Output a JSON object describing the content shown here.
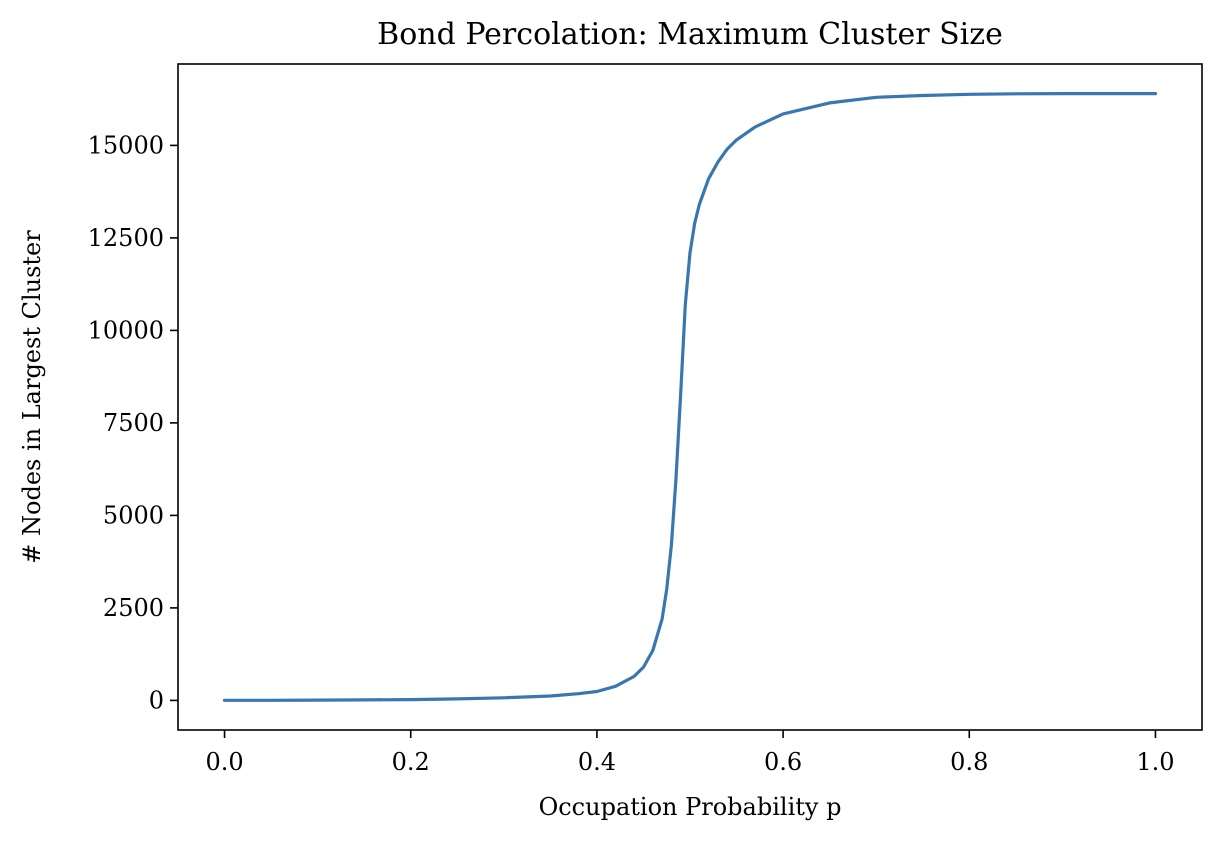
{
  "chart_data": {
    "type": "line",
    "title": "Bond Percolation: Maximum Cluster Size",
    "xlabel": "Occupation Probability p",
    "ylabel": "# Nodes in Largest Cluster",
    "xlim": [
      -0.05,
      1.05
    ],
    "ylim": [
      -800,
      17200
    ],
    "x_ticks": [
      0.0,
      0.2,
      0.4,
      0.6,
      0.8,
      1.0
    ],
    "x_tick_labels": [
      "0.0",
      "0.2",
      "0.4",
      "0.6",
      "0.8",
      "1.0"
    ],
    "y_ticks": [
      0,
      2500,
      5000,
      7500,
      10000,
      12500,
      15000
    ],
    "y_tick_labels": [
      "0",
      "2500",
      "5000",
      "7500",
      "10000",
      "12500",
      "15000"
    ],
    "grid": false,
    "line_color": "#3a76af",
    "series": [
      {
        "x": [
          0.0,
          0.05,
          0.1,
          0.15,
          0.2,
          0.25,
          0.3,
          0.35,
          0.38,
          0.4,
          0.42,
          0.44,
          0.45,
          0.46,
          0.47,
          0.475,
          0.48,
          0.485,
          0.49,
          0.495,
          0.5,
          0.505,
          0.51,
          0.52,
          0.53,
          0.54,
          0.55,
          0.57,
          0.6,
          0.65,
          0.7,
          0.75,
          0.8,
          0.85,
          0.9,
          0.95,
          1.0
        ],
        "y": [
          2,
          4,
          8,
          14,
          22,
          40,
          70,
          120,
          180,
          240,
          380,
          650,
          900,
          1350,
          2200,
          3000,
          4200,
          6000,
          8300,
          10700,
          12100,
          12900,
          13400,
          14100,
          14550,
          14900,
          15150,
          15500,
          15850,
          16150,
          16300,
          16350,
          16380,
          16395,
          16400,
          16400,
          16400
        ]
      }
    ]
  }
}
